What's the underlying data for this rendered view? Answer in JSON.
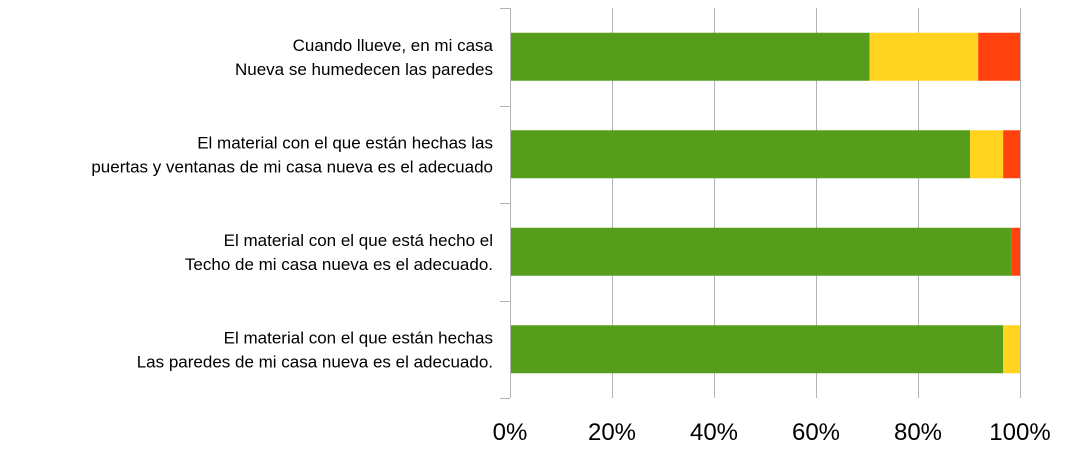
{
  "chart_data": {
    "type": "bar",
    "orientation": "horizontal",
    "stacked": true,
    "percent": true,
    "categories": [
      [
        "Cuando llueve, en mi casa",
        "Nueva se humedecen las paredes"
      ],
      [
        "El material con el que están hechas las",
        "puertas y ventanas de mi casa nueva es el adecuado"
      ],
      [
        "El material con el que está hecho el",
        "Techo de mi casa nueva es el adecuado."
      ],
      [
        "El material con el que están hechas",
        "Las paredes de mi casa nueva es el adecuado."
      ]
    ],
    "series": [
      {
        "color": "#579d1c",
        "values": [
          70.5,
          90.2,
          98.3,
          96.7
        ]
      },
      {
        "color": "#ffd320",
        "values": [
          21.3,
          6.5,
          0,
          3.3
        ]
      },
      {
        "color": "#ff420e",
        "values": [
          8.2,
          3.3,
          1.7,
          0
        ]
      }
    ],
    "xlim": [
      0,
      100
    ],
    "xticks": [
      "0%",
      "20%",
      "40%",
      "60%",
      "80%",
      "100%"
    ],
    "grid": true,
    "legend": "none"
  }
}
